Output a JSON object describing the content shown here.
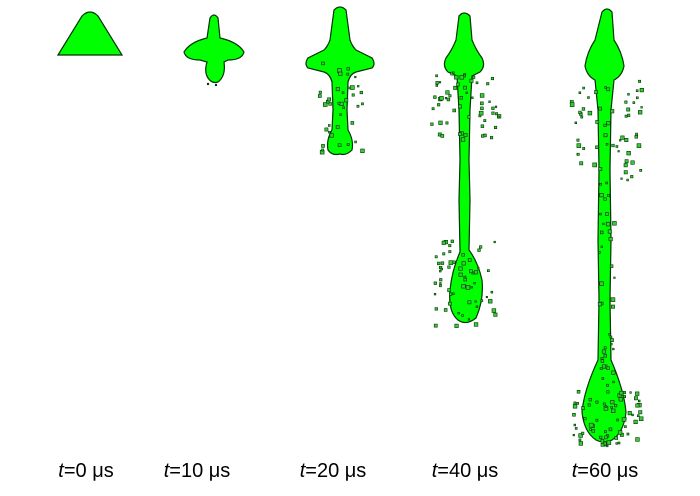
{
  "frames": [
    {
      "id": "t0",
      "t_label": "t",
      "eq_label": "=0 μs"
    },
    {
      "id": "t10",
      "t_label": "t",
      "eq_label": "=10 μs"
    },
    {
      "id": "t20",
      "t_label": "t",
      "eq_label": "=20 μs"
    },
    {
      "id": "t40",
      "t_label": "t",
      "eq_label": "=40 μs"
    },
    {
      "id": "t60",
      "t_label": "t",
      "eq_label": "=60 μs"
    }
  ],
  "colors": {
    "jet_fill": "#00ff00",
    "jet_outline": "#003300",
    "fragment_fill": "#33cc33",
    "background": "#ffffff"
  }
}
